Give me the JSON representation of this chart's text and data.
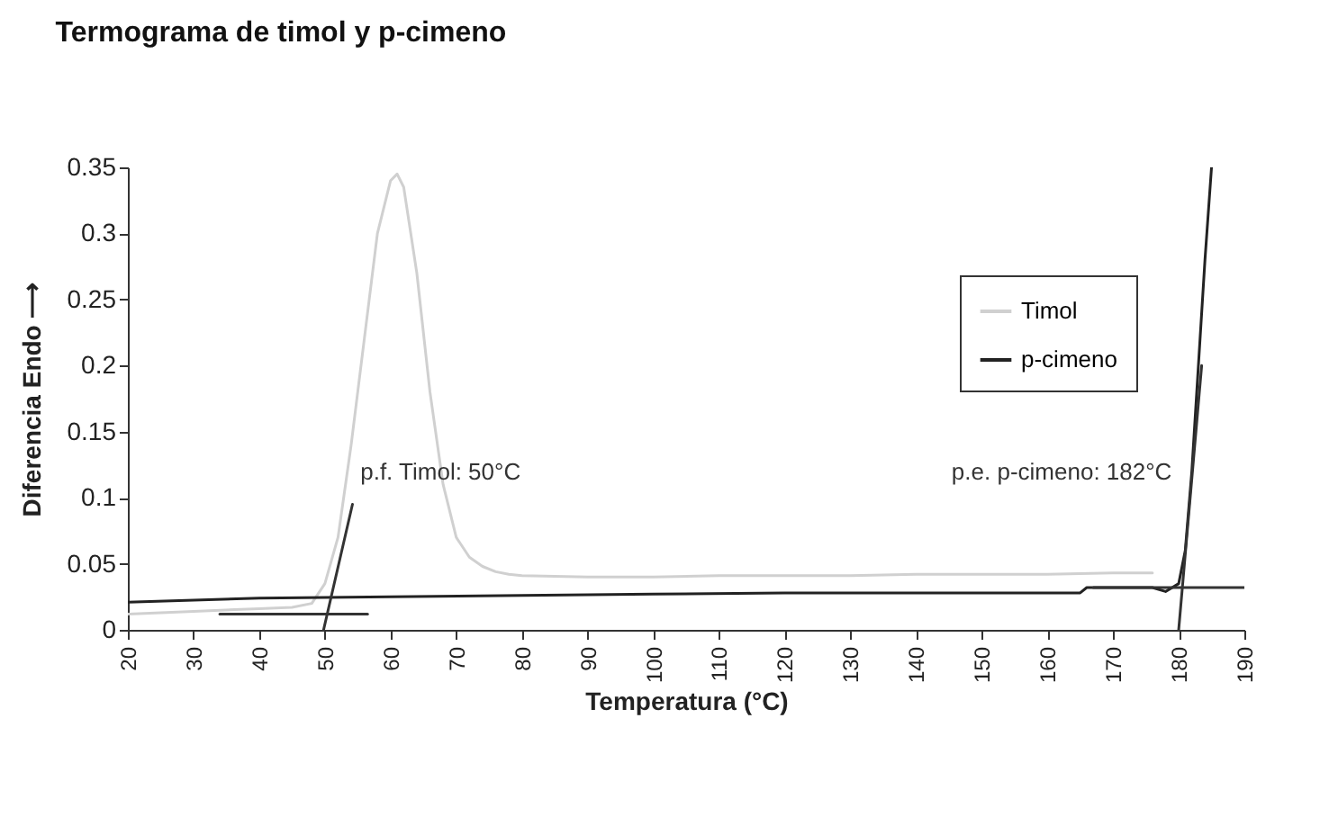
{
  "chart_data": {
    "type": "line",
    "title": "Termograma de timol y p-cimeno",
    "xlabel": "Temperatura (°C)",
    "ylabel": "Diferencia      Endo ⟶",
    "xlim": [
      20,
      190
    ],
    "xticks": [
      20,
      30,
      40,
      50,
      60,
      70,
      80,
      90,
      100,
      110,
      120,
      130,
      140,
      150,
      160,
      170,
      180,
      190
    ],
    "ylim": [
      0,
      0.35
    ],
    "yticks": [
      0,
      0.05,
      0.1,
      0.15,
      0.2,
      0.25,
      0.3,
      0.35
    ],
    "grid": false,
    "legend": "top right",
    "marker": "none",
    "line_style": "solid",
    "annotations": [
      "p.f. Timol: 50°C",
      "p.e. p-cimeno: 182°C"
    ],
    "series": [
      {
        "name": "Timol",
        "color": "#d0d0d0",
        "x": [
          20,
          30,
          40,
          45,
          48,
          50,
          52,
          54,
          56,
          58,
          60,
          61,
          62,
          64,
          66,
          68,
          70,
          72,
          74,
          76,
          78,
          80,
          90,
          100,
          110,
          120,
          130,
          140,
          150,
          160,
          170,
          176
        ],
        "values": [
          0.012,
          0.014,
          0.016,
          0.017,
          0.02,
          0.035,
          0.07,
          0.14,
          0.22,
          0.3,
          0.34,
          0.345,
          0.335,
          0.27,
          0.18,
          0.11,
          0.07,
          0.055,
          0.048,
          0.044,
          0.042,
          0.041,
          0.04,
          0.04,
          0.041,
          0.041,
          0.041,
          0.042,
          0.042,
          0.042,
          0.043,
          0.043
        ]
      },
      {
        "name": "p-cimeno",
        "color": "#222222",
        "x": [
          20,
          40,
          60,
          80,
          100,
          120,
          140,
          160,
          165,
          166,
          176,
          178,
          180,
          181,
          182,
          183,
          184,
          185
        ],
        "values": [
          0.021,
          0.024,
          0.025,
          0.026,
          0.027,
          0.028,
          0.028,
          0.028,
          0.028,
          0.032,
          0.032,
          0.029,
          0.035,
          0.06,
          0.12,
          0.2,
          0.28,
          0.35
        ]
      },
      {
        "type": "line",
        "color": "#333333",
        "x": [
          34,
          56.5
        ],
        "values": [
          0.012,
          0.012
        ]
      },
      {
        "type": "line",
        "color": "#333333",
        "x": [
          49.8,
          54.2
        ],
        "values": [
          0,
          0.095
        ]
      },
      {
        "type": "line",
        "color": "#333333",
        "x": [
          167,
          190
        ],
        "values": [
          0.032,
          0.032
        ]
      },
      {
        "type": "line",
        "color": "#333333",
        "x": [
          180,
          183.5
        ],
        "values": [
          0,
          0.2
        ]
      }
    ]
  }
}
